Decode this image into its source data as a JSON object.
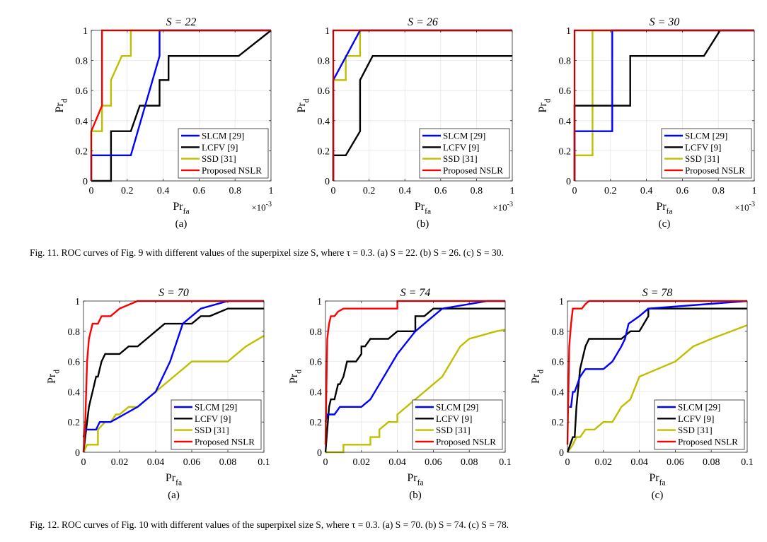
{
  "captions": {
    "fig11": "Fig. 11.   ROC curves of Fig. 9 with different values of the superpixel size S, where τ = 0.3. (a) S = 22. (b) S = 26. (c) S = 30.",
    "fig12": "Fig. 12.   ROC curves of Fig. 10 with different values of the superpixel size S, where τ = 0.3. (a) S = 70. (b) S = 74. (c) S = 78."
  },
  "colors": {
    "SLCM [29]": "#0000ff",
    "LCFV [9]": "#000000",
    "SSD [31]": "#bfbf00",
    "Proposed NSLR": "#ff0000"
  },
  "chart_data": [
    {
      "type": "line",
      "title": "S = 22",
      "panel_label": "(a)",
      "xlabel": "Pr_fa",
      "ylabel": "Pr_d",
      "x_multiplier": "×10^-3",
      "xlim": [
        0,
        1
      ],
      "ylim": [
        0,
        1
      ],
      "xticks": [
        "0",
        "0.2",
        "0.4",
        "0.6",
        "0.8",
        "1"
      ],
      "yticks": [
        "0",
        "0.2",
        "0.4",
        "0.6",
        "0.8",
        "1"
      ],
      "grid": true,
      "legend_position": "bottom-right",
      "series": [
        {
          "name": "SLCM [29]",
          "x": [
            0,
            0,
            0.22,
            0.38,
            0.38,
            1
          ],
          "y": [
            0,
            0.17,
            0.17,
            0.83,
            1,
            1
          ]
        },
        {
          "name": "LCFV [9]",
          "x": [
            0,
            0.11,
            0.11,
            0.22,
            0.27,
            0.38,
            0.38,
            0.43,
            0.43,
            0.82,
            1
          ],
          "y": [
            0,
            0,
            0.33,
            0.33,
            0.5,
            0.5,
            0.67,
            0.67,
            0.83,
            0.83,
            1
          ]
        },
        {
          "name": "SSD [31]",
          "x": [
            0,
            0,
            0.06,
            0.06,
            0.11,
            0.11,
            0.17,
            0.22,
            0.22,
            1
          ],
          "y": [
            0,
            0.33,
            0.33,
            0.5,
            0.5,
            0.67,
            0.83,
            0.83,
            1,
            1
          ]
        },
        {
          "name": "Proposed NSLR",
          "x": [
            0,
            0,
            0.06,
            0.06,
            1
          ],
          "y": [
            0,
            0.33,
            0.5,
            1,
            1
          ]
        }
      ]
    },
    {
      "type": "line",
      "title": "S = 26",
      "panel_label": "(b)",
      "xlabel": "Pr_fa",
      "ylabel": "Pr_d",
      "x_multiplier": "×10^-3",
      "xlim": [
        0,
        1
      ],
      "ylim": [
        0,
        1
      ],
      "xticks": [
        "0",
        "0.2",
        "0.4",
        "0.6",
        "0.8",
        "1"
      ],
      "yticks": [
        "0",
        "0.2",
        "0.4",
        "0.6",
        "0.8",
        "1"
      ],
      "grid": true,
      "legend_position": "bottom-right",
      "series": [
        {
          "name": "SLCM [29]",
          "x": [
            0,
            0,
            0.15,
            0.15,
            1
          ],
          "y": [
            0,
            0.67,
            1,
            1,
            1
          ]
        },
        {
          "name": "LCFV [9]",
          "x": [
            0,
            0,
            0.07,
            0.15,
            0.15,
            0.22,
            1
          ],
          "y": [
            0,
            0.17,
            0.17,
            0.33,
            0.67,
            0.83,
            0.83
          ]
        },
        {
          "name": "SSD [31]",
          "x": [
            0,
            0,
            0.07,
            0.07,
            0.15,
            0.15,
            1
          ],
          "y": [
            0,
            0.67,
            0.67,
            0.83,
            0.83,
            1,
            1
          ]
        },
        {
          "name": "Proposed NSLR",
          "x": [
            0,
            0,
            1
          ],
          "y": [
            0,
            1,
            1
          ]
        }
      ]
    },
    {
      "type": "line",
      "title": "S = 30",
      "panel_label": "(c)",
      "xlabel": "Pr_fa",
      "ylabel": "Pr_d",
      "x_multiplier": "×10^-3",
      "xlim": [
        0,
        1
      ],
      "ylim": [
        0,
        1
      ],
      "xticks": [
        "0",
        "0.2",
        "0.4",
        "0.6",
        "0.8",
        "1"
      ],
      "yticks": [
        "0",
        "0.2",
        "0.4",
        "0.6",
        "0.8",
        "1"
      ],
      "grid": true,
      "legend_position": "bottom-right",
      "series": [
        {
          "name": "SLCM [29]",
          "x": [
            0,
            0,
            0.21,
            0.21,
            1
          ],
          "y": [
            0,
            0.33,
            0.33,
            1,
            1
          ]
        },
        {
          "name": "LCFV [9]",
          "x": [
            0,
            0,
            0.31,
            0.31,
            0.72,
            0.81,
            1
          ],
          "y": [
            0,
            0.5,
            0.5,
            0.83,
            0.83,
            1,
            1
          ]
        },
        {
          "name": "SSD [31]",
          "x": [
            0,
            0,
            0.1,
            0.1,
            1
          ],
          "y": [
            0,
            0.17,
            0.17,
            1,
            1
          ]
        },
        {
          "name": "Proposed NSLR",
          "x": [
            0,
            0,
            1
          ],
          "y": [
            0,
            1,
            1
          ]
        }
      ]
    },
    {
      "type": "line",
      "title": "S = 70",
      "panel_label": "(a)",
      "xlabel": "Pr_fa",
      "ylabel": "Pr_d",
      "x_multiplier": "",
      "xlim": [
        0,
        0.1
      ],
      "ylim": [
        0,
        1
      ],
      "xticks": [
        "0",
        "0.02",
        "0.04",
        "0.06",
        "0.08",
        "0.1"
      ],
      "yticks": [
        "0",
        "0.2",
        "0.4",
        "0.6",
        "0.8",
        "1"
      ],
      "grid": true,
      "legend_position": "bottom-right",
      "series": [
        {
          "name": "SLCM [29]",
          "x": [
            0,
            0.001,
            0.007,
            0.009,
            0.015,
            0.03,
            0.04,
            0.048,
            0.055,
            0.065,
            0.08,
            0.1
          ],
          "y": [
            0.1,
            0.15,
            0.15,
            0.2,
            0.2,
            0.3,
            0.4,
            0.6,
            0.85,
            0.95,
            1,
            1
          ]
        },
        {
          "name": "LCFV [9]",
          "x": [
            0,
            0.001,
            0.002,
            0.003,
            0.004,
            0.005,
            0.006,
            0.007,
            0.008,
            0.009,
            0.01,
            0.012,
            0.02,
            0.025,
            0.03,
            0.035,
            0.04,
            0.045,
            0.05,
            0.055,
            0.06,
            0.065,
            0.07,
            0.08,
            0.1
          ],
          "y": [
            0,
            0.1,
            0.2,
            0.3,
            0.35,
            0.4,
            0.45,
            0.5,
            0.5,
            0.55,
            0.6,
            0.65,
            0.65,
            0.7,
            0.7,
            0.75,
            0.8,
            0.85,
            0.85,
            0.85,
            0.85,
            0.9,
            0.9,
            0.95,
            0.95
          ]
        },
        {
          "name": "SSD [31]",
          "x": [
            0,
            0.002,
            0.008,
            0.008,
            0.012,
            0.015,
            0.018,
            0.02,
            0.025,
            0.03,
            0.035,
            0.04,
            0.05,
            0.055,
            0.06,
            0.07,
            0.08,
            0.09,
            0.1
          ],
          "y": [
            0,
            0.05,
            0.05,
            0.15,
            0.2,
            0.2,
            0.25,
            0.25,
            0.3,
            0.3,
            0.35,
            0.4,
            0.5,
            0.55,
            0.6,
            0.6,
            0.6,
            0.7,
            0.77
          ]
        },
        {
          "name": "Proposed NSLR",
          "x": [
            0,
            0.001,
            0.002,
            0.003,
            0.004,
            0.005,
            0.008,
            0.01,
            0.015,
            0.02,
            0.03,
            0.035,
            0.1
          ],
          "y": [
            0,
            0.2,
            0.6,
            0.75,
            0.8,
            0.85,
            0.85,
            0.9,
            0.9,
            0.95,
            1,
            1,
            1
          ]
        }
      ]
    },
    {
      "type": "line",
      "title": "S = 74",
      "panel_label": "(b)",
      "xlabel": "Pr_fa",
      "ylabel": "Pr_d",
      "x_multiplier": "",
      "xlim": [
        0,
        0.1
      ],
      "ylim": [
        0,
        1
      ],
      "xticks": [
        "0",
        "0.02",
        "0.04",
        "0.06",
        "0.08",
        "0.1"
      ],
      "yticks": [
        "0",
        "0.2",
        "0.4",
        "0.6",
        "0.8",
        "1"
      ],
      "grid": true,
      "legend_position": "bottom-right",
      "series": [
        {
          "name": "SLCM [29]",
          "x": [
            0,
            0.001,
            0.005,
            0.008,
            0.015,
            0.02,
            0.025,
            0.03,
            0.035,
            0.04,
            0.05,
            0.055,
            0.065,
            0.08,
            0.09,
            0.1
          ],
          "y": [
            0.2,
            0.25,
            0.25,
            0.3,
            0.3,
            0.3,
            0.35,
            0.45,
            0.55,
            0.65,
            0.8,
            0.85,
            0.95,
            0.98,
            1,
            1
          ]
        },
        {
          "name": "LCFV [9]",
          "x": [
            0,
            0.001,
            0.002,
            0.003,
            0.005,
            0.007,
            0.008,
            0.01,
            0.012,
            0.017,
            0.02,
            0.02,
            0.022,
            0.025,
            0.03,
            0.035,
            0.04,
            0.045,
            0.05,
            0.05,
            0.055,
            0.06,
            0.065,
            0.1
          ],
          "y": [
            0,
            0.15,
            0.3,
            0.35,
            0.35,
            0.45,
            0.45,
            0.5,
            0.6,
            0.6,
            0.65,
            0.7,
            0.7,
            0.75,
            0.75,
            0.75,
            0.8,
            0.8,
            0.8,
            0.9,
            0.9,
            0.95,
            0.95,
            0.95
          ]
        },
        {
          "name": "SSD [31]",
          "x": [
            0,
            0.01,
            0.01,
            0.025,
            0.025,
            0.03,
            0.03,
            0.035,
            0.04,
            0.04,
            0.045,
            0.05,
            0.055,
            0.06,
            0.065,
            0.07,
            0.075,
            0.08,
            0.095,
            0.1
          ],
          "y": [
            0,
            0,
            0.05,
            0.05,
            0.1,
            0.1,
            0.15,
            0.2,
            0.2,
            0.25,
            0.3,
            0.35,
            0.4,
            0.45,
            0.5,
            0.6,
            0.7,
            0.75,
            0.8,
            0.81
          ]
        },
        {
          "name": "Proposed NSLR",
          "x": [
            0,
            0.001,
            0.002,
            0.003,
            0.005,
            0.007,
            0.01,
            0.02,
            0.03,
            0.035,
            0.04,
            0.04,
            0.1
          ],
          "y": [
            0.05,
            0.75,
            0.85,
            0.9,
            0.9,
            0.93,
            0.95,
            0.95,
            0.95,
            0.95,
            0.95,
            1,
            1
          ]
        }
      ]
    },
    {
      "type": "line",
      "title": "S = 78",
      "panel_label": "(c)",
      "xlabel": "Pr_fa",
      "ylabel": "Pr_d",
      "x_multiplier": "",
      "xlim": [
        0,
        0.1
      ],
      "ylim": [
        0,
        1
      ],
      "xticks": [
        "0",
        "0.02",
        "0.04",
        "0.06",
        "0.08",
        "0.1"
      ],
      "yticks": [
        "0",
        "0.2",
        "0.4",
        "0.6",
        "0.8",
        "1"
      ],
      "grid": true,
      "legend_position": "bottom-right",
      "series": [
        {
          "name": "SLCM [29]",
          "x": [
            0.001,
            0.002,
            0.003,
            0.004,
            0.007,
            0.01,
            0.012,
            0.02,
            0.025,
            0.03,
            0.032,
            0.034,
            0.04,
            0.045,
            0.1
          ],
          "y": [
            0.3,
            0.3,
            0.4,
            0.4,
            0.5,
            0.55,
            0.55,
            0.55,
            0.6,
            0.7,
            0.75,
            0.85,
            0.9,
            0.95,
            1
          ]
        },
        {
          "name": "LCFV [9]",
          "x": [
            0,
            0.003,
            0.004,
            0.005,
            0.007,
            0.008,
            0.01,
            0.012,
            0.015,
            0.02,
            0.025,
            0.03,
            0.035,
            0.04,
            0.045,
            0.045,
            0.05,
            0.1
          ],
          "y": [
            0,
            0.1,
            0.1,
            0.3,
            0.55,
            0.6,
            0.7,
            0.75,
            0.75,
            0.75,
            0.75,
            0.75,
            0.8,
            0.8,
            0.9,
            0.95,
            0.95,
            0.95
          ]
        },
        {
          "name": "SSD [31]",
          "x": [
            0,
            0.003,
            0.005,
            0.007,
            0.01,
            0.015,
            0.02,
            0.025,
            0.03,
            0.035,
            0.04,
            0.05,
            0.06,
            0.07,
            0.08,
            0.1
          ],
          "y": [
            0,
            0.05,
            0.1,
            0.1,
            0.15,
            0.15,
            0.2,
            0.2,
            0.3,
            0.35,
            0.5,
            0.55,
            0.6,
            0.7,
            0.75,
            0.84
          ]
        },
        {
          "name": "Proposed NSLR",
          "x": [
            0,
            0.001,
            0.002,
            0.003,
            0.006,
            0.008,
            0.01,
            0.012,
            0.1
          ],
          "y": [
            0.05,
            0.7,
            0.85,
            0.95,
            0.95,
            0.95,
            0.98,
            1,
            1
          ]
        }
      ]
    }
  ]
}
